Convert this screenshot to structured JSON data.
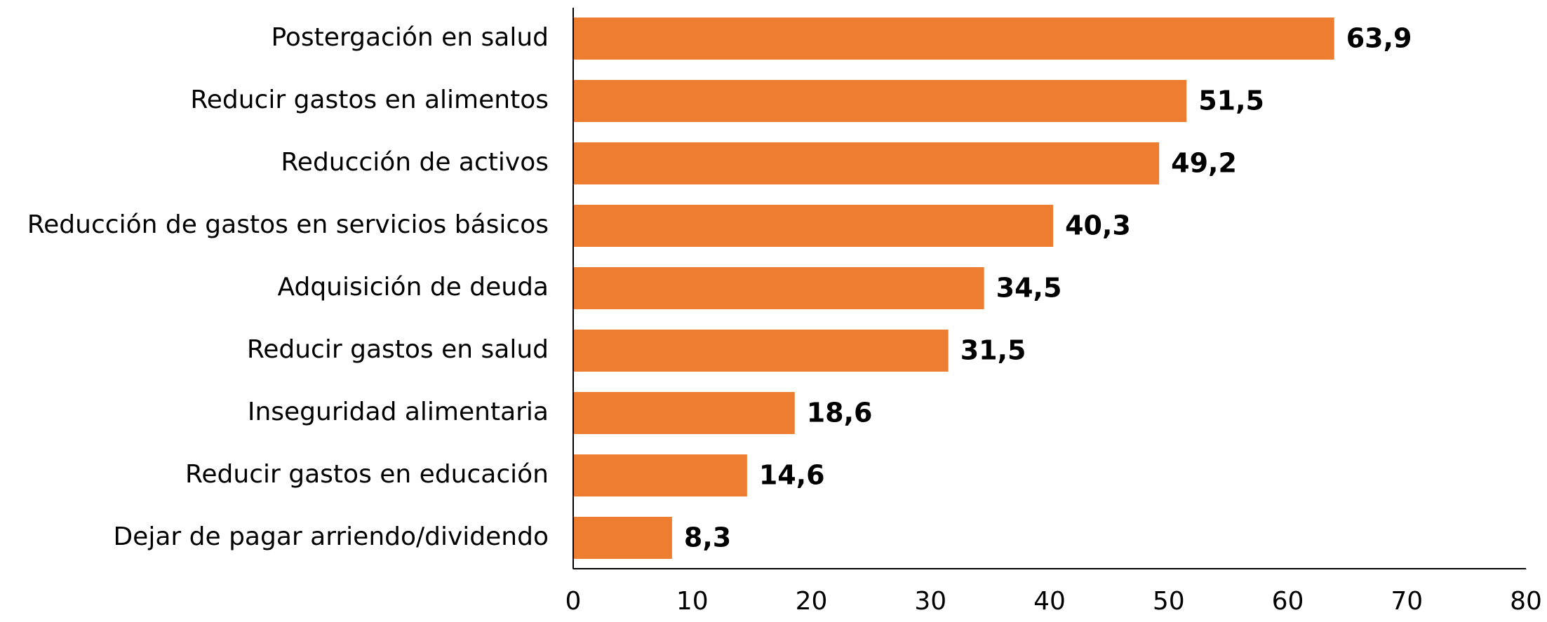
{
  "chart_data": {
    "type": "bar",
    "orientation": "horizontal",
    "categories": [
      "Postergación en salud",
      "Reducir gastos en alimentos",
      "Reducción de activos",
      "Reducción de gastos en servicios básicos",
      "Adquisición de deuda",
      "Reducir gastos en salud",
      "Inseguridad alimentaria",
      "Reducir gastos en educación",
      "Dejar de pagar arriendo/dividendo"
    ],
    "values": [
      63.9,
      51.5,
      49.2,
      40.3,
      34.5,
      31.5,
      18.6,
      14.6,
      8.3
    ],
    "value_labels": [
      "63,9",
      "51,5",
      "49,2",
      "40,3",
      "34,5",
      "31,5",
      "18,6",
      "14,6",
      "8,3"
    ],
    "color": "#ed7d31",
    "xlim": [
      0,
      80
    ],
    "xticks": [
      0,
      10,
      20,
      30,
      40,
      50,
      60,
      70,
      80
    ],
    "grid": false
  }
}
